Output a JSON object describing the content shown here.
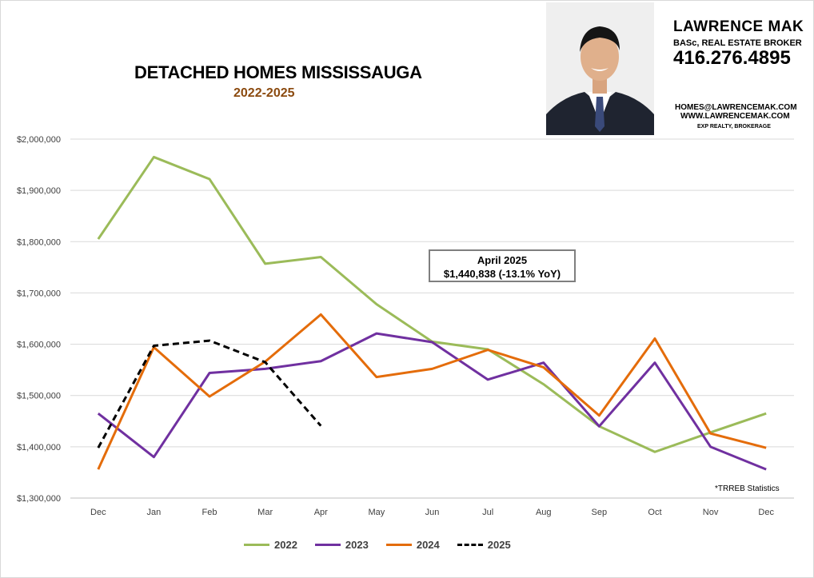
{
  "header": {
    "title": "DETACHED HOMES MISSISSAUGA",
    "subtitle": "2022-2025"
  },
  "agent": {
    "name": "LAWRENCE MAK",
    "role": "BASc, REAL ESTATE BROKER",
    "phone": "416.276.4895",
    "email": "HOMES@LAWRENCEMAK.COM",
    "website": "WWW.LAWRENCEMAK.COM",
    "brokerage": "EXP REALTY, BROKERAGE"
  },
  "annotation": {
    "line1": "April 2025",
    "line2": "$1,440,838 (-13.1% YoY)"
  },
  "source_note": "*TRREB Statistics",
  "chart_data": {
    "type": "line",
    "title": "DETACHED HOMES MISSISSAUGA",
    "subtitle": "2022-2025",
    "xlabel": "",
    "ylabel": "",
    "categories": [
      "Dec",
      "Jan",
      "Feb",
      "Mar",
      "Apr",
      "May",
      "Jun",
      "Jul",
      "Aug",
      "Sep",
      "Oct",
      "Nov",
      "Dec"
    ],
    "ylim": [
      1300000,
      2000000
    ],
    "yticks": [
      1300000,
      1400000,
      1500000,
      1600000,
      1700000,
      1800000,
      1900000,
      2000000
    ],
    "ytick_labels": [
      "$1,300,000",
      "$1,400,000",
      "$1,500,000",
      "$1,600,000",
      "$1,700,000",
      "$1,800,000",
      "$1,900,000",
      "$2,000,000"
    ],
    "grid": "horizontal",
    "legend_position": "bottom",
    "series": [
      {
        "name": "2022",
        "color": "#9bbb59",
        "style": "solid",
        "values": [
          1805000,
          1965000,
          1922000,
          1757000,
          1770000,
          1678000,
          1605000,
          1590000,
          1522000,
          1440000,
          1390000,
          1428000,
          1465000
        ]
      },
      {
        "name": "2023",
        "color": "#7030a0",
        "style": "solid",
        "values": [
          1465000,
          1380000,
          1544000,
          1552000,
          1567000,
          1621000,
          1604000,
          1531000,
          1564000,
          1440000,
          1564000,
          1400000,
          1356000
        ]
      },
      {
        "name": "2024",
        "color": "#e46c0a",
        "style": "solid",
        "values": [
          1356000,
          1594000,
          1498000,
          1566000,
          1658000,
          1536000,
          1552000,
          1589000,
          1555000,
          1461000,
          1611000,
          1426000,
          1398000
        ]
      },
      {
        "name": "2025",
        "color": "#000000",
        "style": "dashed",
        "values": [
          1398000,
          1597000,
          1607000,
          1565000,
          1440838,
          null,
          null,
          null,
          null,
          null,
          null,
          null,
          null
        ]
      }
    ]
  }
}
